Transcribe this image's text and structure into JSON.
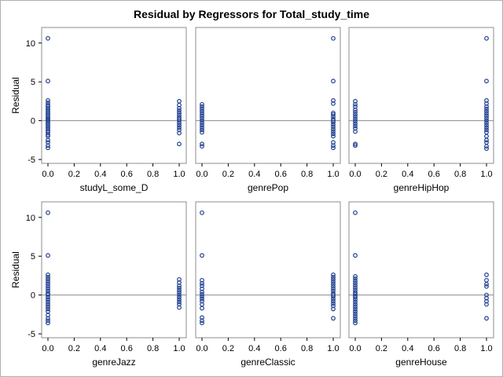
{
  "chart_data": {
    "type": "scatter",
    "title": "Residual by Regressors for Total_study_time",
    "ylabel": "Residual",
    "xlim": [
      0,
      1
    ],
    "ylim": [
      -5.5,
      12
    ],
    "x_ticks": [
      "0.0",
      "0.2",
      "0.4",
      "0.6",
      "0.8",
      "1.0"
    ],
    "y_ticks": [
      "-5",
      "0",
      "5",
      "10"
    ],
    "reference_line_y": 0,
    "marker_color": "#1f3f8f",
    "reference_line_color": "#8c8c8c",
    "panels": [
      {
        "xlabel": "studyL_some_D",
        "points_x0": [
          10.6,
          5.1,
          2.6,
          2.3,
          2.0,
          1.8,
          1.6,
          1.4,
          1.2,
          1.0,
          0.8,
          0.6,
          0.4,
          0.2,
          0.1,
          -0.1,
          -0.3,
          -0.5,
          -0.7,
          -0.9,
          -1.1,
          -1.3,
          -1.5,
          -1.8,
          -2.0,
          -2.5,
          -2.8,
          -3.2,
          -3.5
        ],
        "points_x1": [
          2.5,
          2.0,
          1.6,
          1.3,
          1.0,
          0.7,
          0.4,
          0.2,
          0.0,
          -0.3,
          -0.6,
          -0.9,
          -1.2,
          -1.6,
          -3.0
        ]
      },
      {
        "xlabel": "genrePop",
        "points_x0": [
          2.1,
          1.8,
          1.5,
          1.2,
          0.9,
          0.6,
          0.3,
          0.0,
          -0.3,
          -0.6,
          -0.9,
          -1.2,
          -1.5,
          -3.0,
          -3.3
        ],
        "points_x1": [
          10.6,
          5.1,
          2.6,
          2.2,
          1.0,
          0.8,
          0.5,
          0.2,
          0.0,
          -0.2,
          -0.5,
          -0.8,
          -1.1,
          -1.4,
          -1.7,
          -2.0,
          -2.8,
          -3.2,
          -3.5
        ]
      },
      {
        "xlabel": "genreHipHop",
        "points_x0": [
          2.5,
          2.1,
          1.8,
          1.4,
          1.1,
          0.8,
          0.5,
          0.2,
          -0.1,
          -0.4,
          -0.7,
          -1.0,
          -1.4,
          -3.0,
          -3.2
        ],
        "points_x1": [
          10.6,
          5.1,
          2.6,
          2.2,
          1.8,
          1.5,
          1.2,
          0.9,
          0.6,
          0.3,
          0.0,
          -0.3,
          -0.6,
          -0.9,
          -1.2,
          -1.5,
          -2.0,
          -2.5,
          -2.8,
          -3.3,
          -3.6
        ]
      },
      {
        "xlabel": "genreJazz",
        "points_x0": [
          10.6,
          5.1,
          2.6,
          2.3,
          2.0,
          1.7,
          1.4,
          1.1,
          0.8,
          0.5,
          0.2,
          0.0,
          -0.3,
          -0.6,
          -0.9,
          -1.2,
          -1.5,
          -1.8,
          -2.1,
          -2.6,
          -3.0,
          -3.3,
          -3.6
        ],
        "points_x1": [
          2.0,
          1.6,
          1.2,
          0.9,
          0.6,
          0.3,
          0.0,
          -0.3,
          -0.6,
          -0.9,
          -1.2,
          -1.6
        ]
      },
      {
        "xlabel": "genreClassic",
        "points_x0": [
          10.6,
          5.1,
          1.9,
          1.5,
          1.2,
          0.8,
          0.4,
          0.1,
          -0.2,
          -0.5,
          -0.8,
          -1.2,
          -1.7,
          -2.9,
          -3.3,
          -3.6
        ],
        "points_x1": [
          2.6,
          2.3,
          2.0,
          1.7,
          1.4,
          1.1,
          0.8,
          0.5,
          0.2,
          0.0,
          -0.2,
          -0.5,
          -0.8,
          -1.1,
          -1.4,
          -1.8,
          -3.0
        ]
      },
      {
        "xlabel": "genreHouse",
        "points_x0": [
          10.6,
          5.1,
          2.4,
          2.1,
          1.8,
          1.5,
          1.2,
          0.9,
          0.6,
          0.3,
          0.1,
          -0.1,
          -0.3,
          -0.6,
          -0.9,
          -1.2,
          -1.5,
          -1.8,
          -2.1,
          -2.4,
          -2.7,
          -3.0,
          -3.3,
          -3.6
        ],
        "points_x1": [
          2.6,
          1.9,
          1.4,
          1.1,
          0.0,
          -0.4,
          -0.8,
          -1.2,
          -3.0
        ]
      }
    ]
  }
}
